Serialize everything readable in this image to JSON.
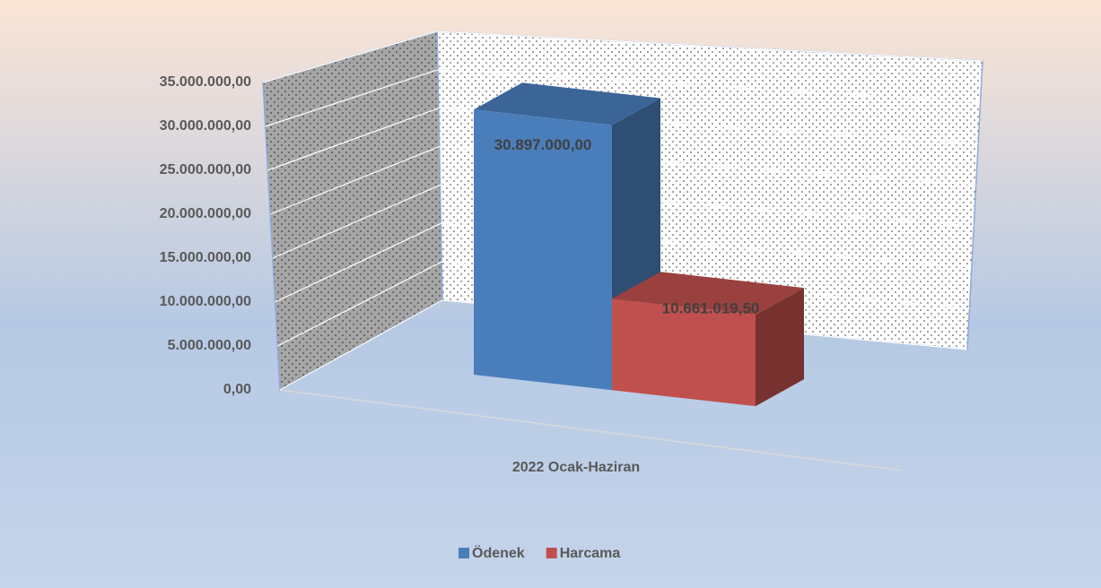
{
  "chart_data": {
    "type": "bar3d",
    "categories": [
      "2022 Ocak-Haziran"
    ],
    "series": [
      {
        "name": "Ödenek",
        "color": "#4a7ebb",
        "values": [
          30897000
        ],
        "value_labels": [
          "30.897.000,00"
        ]
      },
      {
        "name": "Harcama",
        "color": "#c0504d",
        "values": [
          10661019.5
        ],
        "value_labels": [
          "10.661.019,50"
        ]
      }
    ],
    "ylim": [
      0,
      35000000
    ],
    "yticks": [
      {
        "value": 0,
        "label": "0,00"
      },
      {
        "value": 5000000,
        "label": "5.000.000,00"
      },
      {
        "value": 10000000,
        "label": "10.000.000,00"
      },
      {
        "value": 15000000,
        "label": "15.000.000,00"
      },
      {
        "value": 20000000,
        "label": "20.000.000,00"
      },
      {
        "value": 25000000,
        "label": "25.000.000,00"
      },
      {
        "value": 30000000,
        "label": "30.000.000,00"
      },
      {
        "value": 35000000,
        "label": "35.000.000,00"
      }
    ],
    "grid": true,
    "legend": "bottom"
  }
}
